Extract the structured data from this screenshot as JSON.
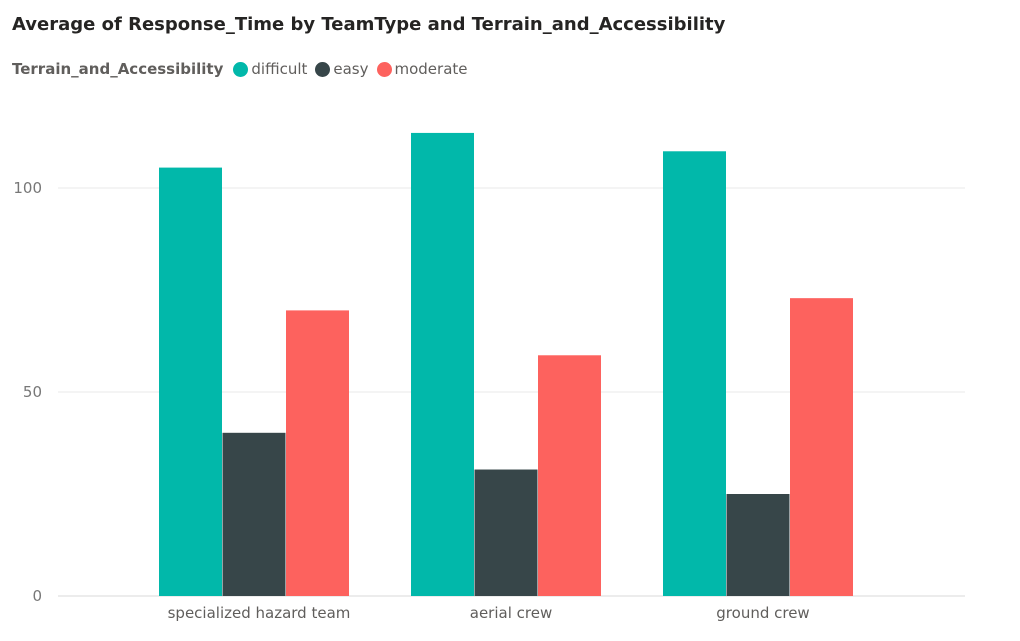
{
  "chart_data": {
    "type": "bar",
    "title": "Average of Response_Time by TeamType and Terrain_and_Accessibility",
    "legend_title": "Terrain_and_Accessibility",
    "legend_position": "top-left",
    "categories": [
      "specialized hazard team",
      "aerial crew",
      "ground crew"
    ],
    "series": [
      {
        "name": "difficult",
        "color": "#01B8AA",
        "values": [
          105,
          113.5,
          109
        ]
      },
      {
        "name": "easy",
        "color": "#374649",
        "values": [
          40,
          31,
          25
        ]
      },
      {
        "name": "moderate",
        "color": "#FD625E",
        "values": [
          70,
          59,
          73
        ]
      }
    ],
    "yticks": [
      0,
      50,
      100
    ],
    "ylim": [
      0,
      100
    ],
    "xlabel": "",
    "ylabel": "",
    "grid": true
  }
}
